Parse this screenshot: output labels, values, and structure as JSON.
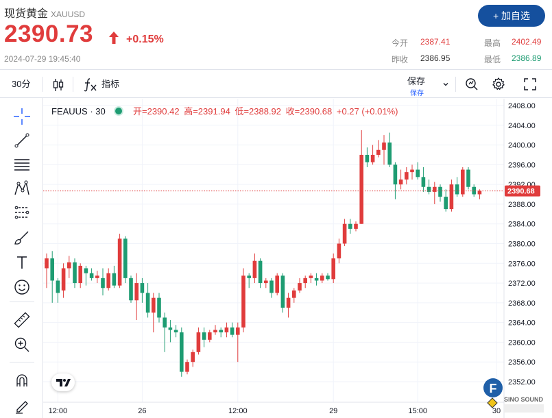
{
  "header": {
    "name": "现货黄金",
    "symbol": "XAUUSD",
    "price": "2390.73",
    "change_pct": "+0.15%",
    "timestamp": "2024-07-29 19:45:40",
    "add_watchlist": "+ 加自选"
  },
  "stats": {
    "open_label": "今开",
    "open": "2387.41",
    "high_label": "最高",
    "high": "2402.49",
    "prev_label": "昨收",
    "prev": "2386.95",
    "low_label": "最低",
    "low": "2386.89"
  },
  "toolbar": {
    "interval": "30分",
    "indicators": "指标",
    "save": "保存",
    "save_sub": "保存"
  },
  "legend": {
    "symbol": "FEAUUS · 30",
    "open": "开=2390.42",
    "high": "高=2391.94",
    "low": "低=2388.92",
    "close": "收=2390.68",
    "change": "+0.27 (+0.01%)"
  },
  "logo_text": "SINO SOUND",
  "colors": {
    "up": "#e03c3c",
    "down": "#1e9c72",
    "accent": "#15509e"
  },
  "chart_data": {
    "type": "candlestick",
    "y_ticks": [
      2352,
      2356,
      2360,
      2364,
      2368,
      2372,
      2376,
      2380,
      2384,
      2388,
      2392,
      2396,
      2400,
      2404,
      2408
    ],
    "x_labels": [
      {
        "label": "12:00",
        "i": 2
      },
      {
        "label": "26",
        "i": 17
      },
      {
        "label": "12:00",
        "i": 34
      },
      {
        "label": "29",
        "i": 51
      },
      {
        "label": "15:00",
        "i": 66
      },
      {
        "label": "30",
        "i": 80
      }
    ],
    "last_price": "2390.68",
    "last_value": 2390.68,
    "grid": true,
    "candles": [
      [
        2375.0,
        2378.0,
        2371.0,
        2377.0
      ],
      [
        2377.0,
        2378.5,
        2368.0,
        2372.5
      ],
      [
        2372.5,
        2373.0,
        2368.0,
        2370.0
      ],
      [
        2370.5,
        2376.0,
        2369.0,
        2375.0
      ],
      [
        2375.0,
        2377.5,
        2373.0,
        2376.2
      ],
      [
        2376.2,
        2377.0,
        2371.0,
        2372.0
      ],
      [
        2372.0,
        2376.0,
        2371.0,
        2375.5
      ],
      [
        2375.0,
        2375.5,
        2371.5,
        2374.0
      ],
      [
        2374.0,
        2375.0,
        2372.5,
        2373.0
      ],
      [
        2373.0,
        2374.5,
        2372.0,
        2373.5
      ],
      [
        2373.0,
        2375.0,
        2369.5,
        2371.0
      ],
      [
        2371.0,
        2375.0,
        2370.5,
        2374.0
      ],
      [
        2374.0,
        2375.5,
        2371.0,
        2371.5
      ],
      [
        2371.5,
        2382.0,
        2371.0,
        2381.0
      ],
      [
        2381.0,
        2381.5,
        2372.0,
        2373.0
      ],
      [
        2373.0,
        2373.5,
        2368.0,
        2368.5
      ],
      [
        2368.5,
        2374.0,
        2364.5,
        2372.0
      ],
      [
        2372.0,
        2373.0,
        2368.0,
        2370.0
      ],
      [
        2370.0,
        2372.0,
        2365.0,
        2366.0
      ],
      [
        2366.0,
        2370.0,
        2362.0,
        2369.0
      ],
      [
        2369.0,
        2370.0,
        2364.0,
        2365.0
      ],
      [
        2365.0,
        2366.0,
        2358.0,
        2363.0
      ],
      [
        2363.0,
        2364.5,
        2360.0,
        2362.5
      ],
      [
        2362.5,
        2363.5,
        2361.0,
        2362.0
      ],
      [
        2362.0,
        2363.0,
        2353.0,
        2354.0
      ],
      [
        2354.0,
        2356.5,
        2353.5,
        2356.0
      ],
      [
        2356.0,
        2358.5,
        2355.0,
        2358.0
      ],
      [
        2358.0,
        2363.0,
        2357.5,
        2362.0
      ],
      [
        2362.0,
        2363.0,
        2359.0,
        2360.5
      ],
      [
        2360.5,
        2362.5,
        2360.0,
        2362.0
      ],
      [
        2362.0,
        2363.5,
        2361.5,
        2362.5
      ],
      [
        2362.5,
        2363.0,
        2361.0,
        2362.0
      ],
      [
        2362.0,
        2364.0,
        2361.0,
        2363.0
      ],
      [
        2363.0,
        2364.0,
        2361.0,
        2361.5
      ],
      [
        2361.5,
        2364.0,
        2356.0,
        2363.0
      ],
      [
        2363.0,
        2375.0,
        2362.0,
        2373.5
      ],
      [
        2373.5,
        2374.0,
        2371.0,
        2373.0
      ],
      [
        2373.0,
        2378.0,
        2372.0,
        2376.5
      ],
      [
        2376.5,
        2377.0,
        2371.0,
        2372.0
      ],
      [
        2372.0,
        2373.0,
        2371.0,
        2372.5
      ],
      [
        2372.5,
        2373.0,
        2369.0,
        2370.0
      ],
      [
        2370.0,
        2374.0,
        2369.5,
        2373.5
      ],
      [
        2373.5,
        2374.0,
        2366.0,
        2367.0
      ],
      [
        2367.0,
        2370.0,
        2365.0,
        2369.0
      ],
      [
        2369.0,
        2371.0,
        2368.0,
        2370.5
      ],
      [
        2370.5,
        2373.0,
        2370.0,
        2372.0
      ],
      [
        2372.0,
        2373.5,
        2371.0,
        2373.0
      ],
      [
        2373.0,
        2374.0,
        2372.0,
        2373.5
      ],
      [
        2373.0,
        2374.0,
        2371.5,
        2372.5
      ],
      [
        2372.5,
        2374.0,
        2372.0,
        2373.5
      ],
      [
        2373.5,
        2374.0,
        2372.5,
        2372.8
      ],
      [
        2372.8,
        2378.0,
        2372.0,
        2377.0
      ],
      [
        2377.0,
        2381.0,
        2376.0,
        2380.0
      ],
      [
        2380.0,
        2385.0,
        2379.5,
        2384.0
      ],
      [
        2384.0,
        2385.0,
        2382.0,
        2383.0
      ],
      [
        2383.0,
        2384.5,
        2382.5,
        2384.0
      ],
      [
        2384.0,
        2403.0,
        2384.0,
        2398.0
      ],
      [
        2398.0,
        2399.5,
        2395.5,
        2396.5
      ],
      [
        2396.5,
        2400.0,
        2396.0,
        2398.0
      ],
      [
        2398.0,
        2401.0,
        2397.5,
        2399.0
      ],
      [
        2399.0,
        2402.0,
        2396.0,
        2400.5
      ],
      [
        2400.5,
        2402.5,
        2395.5,
        2396.0
      ],
      [
        2396.0,
        2396.5,
        2389.0,
        2392.0
      ],
      [
        2392.0,
        2395.0,
        2391.0,
        2393.0
      ],
      [
        2393.0,
        2395.5,
        2392.0,
        2394.5
      ],
      [
        2394.5,
        2396.0,
        2393.0,
        2395.0
      ],
      [
        2395.0,
        2396.5,
        2393.0,
        2393.5
      ],
      [
        2393.5,
        2395.5,
        2390.5,
        2391.5
      ],
      [
        2391.5,
        2393.0,
        2390.0,
        2390.5
      ],
      [
        2390.5,
        2392.5,
        2388.0,
        2391.5
      ],
      [
        2391.5,
        2392.0,
        2388.5,
        2389.5
      ],
      [
        2389.5,
        2391.0,
        2386.5,
        2387.0
      ],
      [
        2387.0,
        2393.0,
        2386.5,
        2392.0
      ],
      [
        2392.0,
        2393.5,
        2389.5,
        2390.0
      ],
      [
        2390.0,
        2395.5,
        2389.5,
        2395.0
      ],
      [
        2395.0,
        2395.5,
        2391.0,
        2391.5
      ],
      [
        2391.5,
        2392.0,
        2389.5,
        2390.0
      ],
      [
        2390.0,
        2391.0,
        2389.0,
        2390.7
      ]
    ]
  }
}
